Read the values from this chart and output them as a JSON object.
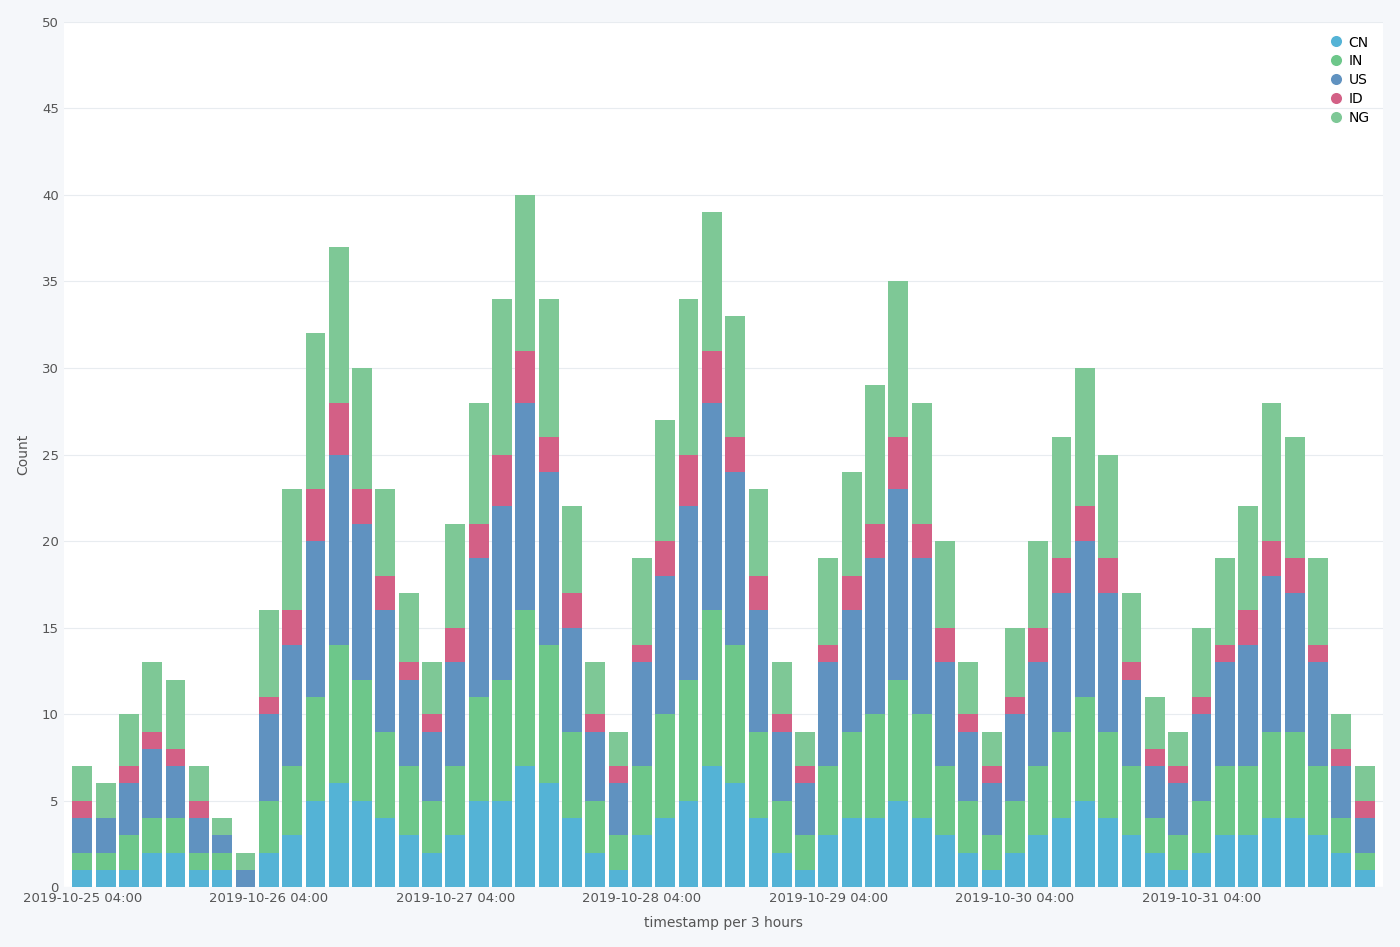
{
  "title": "",
  "xlabel": "timestamp per 3 hours",
  "ylabel": "Count",
  "ylim": [
    0,
    50
  ],
  "yticks": [
    0,
    5,
    10,
    15,
    20,
    25,
    30,
    35,
    40,
    45,
    50
  ],
  "bg_color": "#f5f7fa",
  "plot_bg_color": "#ffffff",
  "series": [
    "CN",
    "IN",
    "US",
    "ID",
    "NG"
  ],
  "colors": {
    "CN": "#54b3d6",
    "IN": "#6dc78a",
    "US": "#6092c0",
    "ID": "#d36086",
    "NG": "#7ec896"
  },
  "bar_width": 0.85,
  "n_bars": 56,
  "xtick_labels": [
    "2019-10-25 04:00",
    "2019-10-26 04:00",
    "2019-10-27 04:00",
    "2019-10-28 04:00",
    "2019-10-29 04:00",
    "2019-10-30 04:00",
    "2019-10-31 04:00"
  ],
  "xtick_positions": [
    0,
    8,
    16,
    24,
    32,
    40,
    48
  ],
  "data": {
    "CN": [
      1,
      1,
      1,
      2,
      2,
      1,
      1,
      0,
      2,
      3,
      5,
      6,
      5,
      4,
      3,
      2,
      3,
      5,
      5,
      7,
      6,
      4,
      2,
      1,
      3,
      4,
      5,
      7,
      6,
      4,
      2,
      1,
      3,
      4,
      4,
      5,
      4,
      3,
      2,
      1,
      2,
      3,
      4,
      5,
      4,
      3,
      2,
      1,
      2,
      3,
      3,
      4,
      4,
      3,
      2,
      1
    ],
    "IN": [
      1,
      1,
      2,
      2,
      2,
      1,
      1,
      0,
      3,
      4,
      6,
      8,
      7,
      5,
      4,
      3,
      4,
      6,
      7,
      9,
      8,
      5,
      3,
      2,
      4,
      6,
      7,
      9,
      8,
      5,
      3,
      2,
      4,
      5,
      6,
      7,
      6,
      4,
      3,
      2,
      3,
      4,
      5,
      6,
      5,
      4,
      2,
      2,
      3,
      4,
      4,
      5,
      5,
      4,
      2,
      1
    ],
    "US": [
      2,
      2,
      3,
      4,
      3,
      2,
      1,
      1,
      5,
      7,
      9,
      11,
      9,
      7,
      5,
      4,
      6,
      8,
      10,
      12,
      10,
      6,
      4,
      3,
      6,
      8,
      10,
      12,
      10,
      7,
      4,
      3,
      6,
      7,
      9,
      11,
      9,
      6,
      4,
      3,
      5,
      6,
      8,
      9,
      8,
      5,
      3,
      3,
      5,
      6,
      7,
      9,
      8,
      6,
      3,
      2
    ],
    "ID": [
      1,
      0,
      1,
      1,
      1,
      1,
      0,
      0,
      1,
      2,
      3,
      3,
      2,
      2,
      1,
      1,
      2,
      2,
      3,
      3,
      2,
      2,
      1,
      1,
      1,
      2,
      3,
      3,
      2,
      2,
      1,
      1,
      1,
      2,
      2,
      3,
      2,
      2,
      1,
      1,
      1,
      2,
      2,
      2,
      2,
      1,
      1,
      1,
      1,
      1,
      2,
      2,
      2,
      1,
      1,
      1
    ],
    "NG": [
      2,
      2,
      3,
      4,
      4,
      2,
      1,
      1,
      5,
      7,
      9,
      9,
      7,
      5,
      4,
      3,
      6,
      7,
      9,
      9,
      8,
      5,
      3,
      2,
      5,
      7,
      9,
      8,
      7,
      5,
      3,
      2,
      5,
      6,
      8,
      9,
      7,
      5,
      3,
      2,
      4,
      5,
      7,
      8,
      6,
      4,
      3,
      2,
      4,
      5,
      6,
      8,
      7,
      5,
      2,
      2
    ]
  }
}
